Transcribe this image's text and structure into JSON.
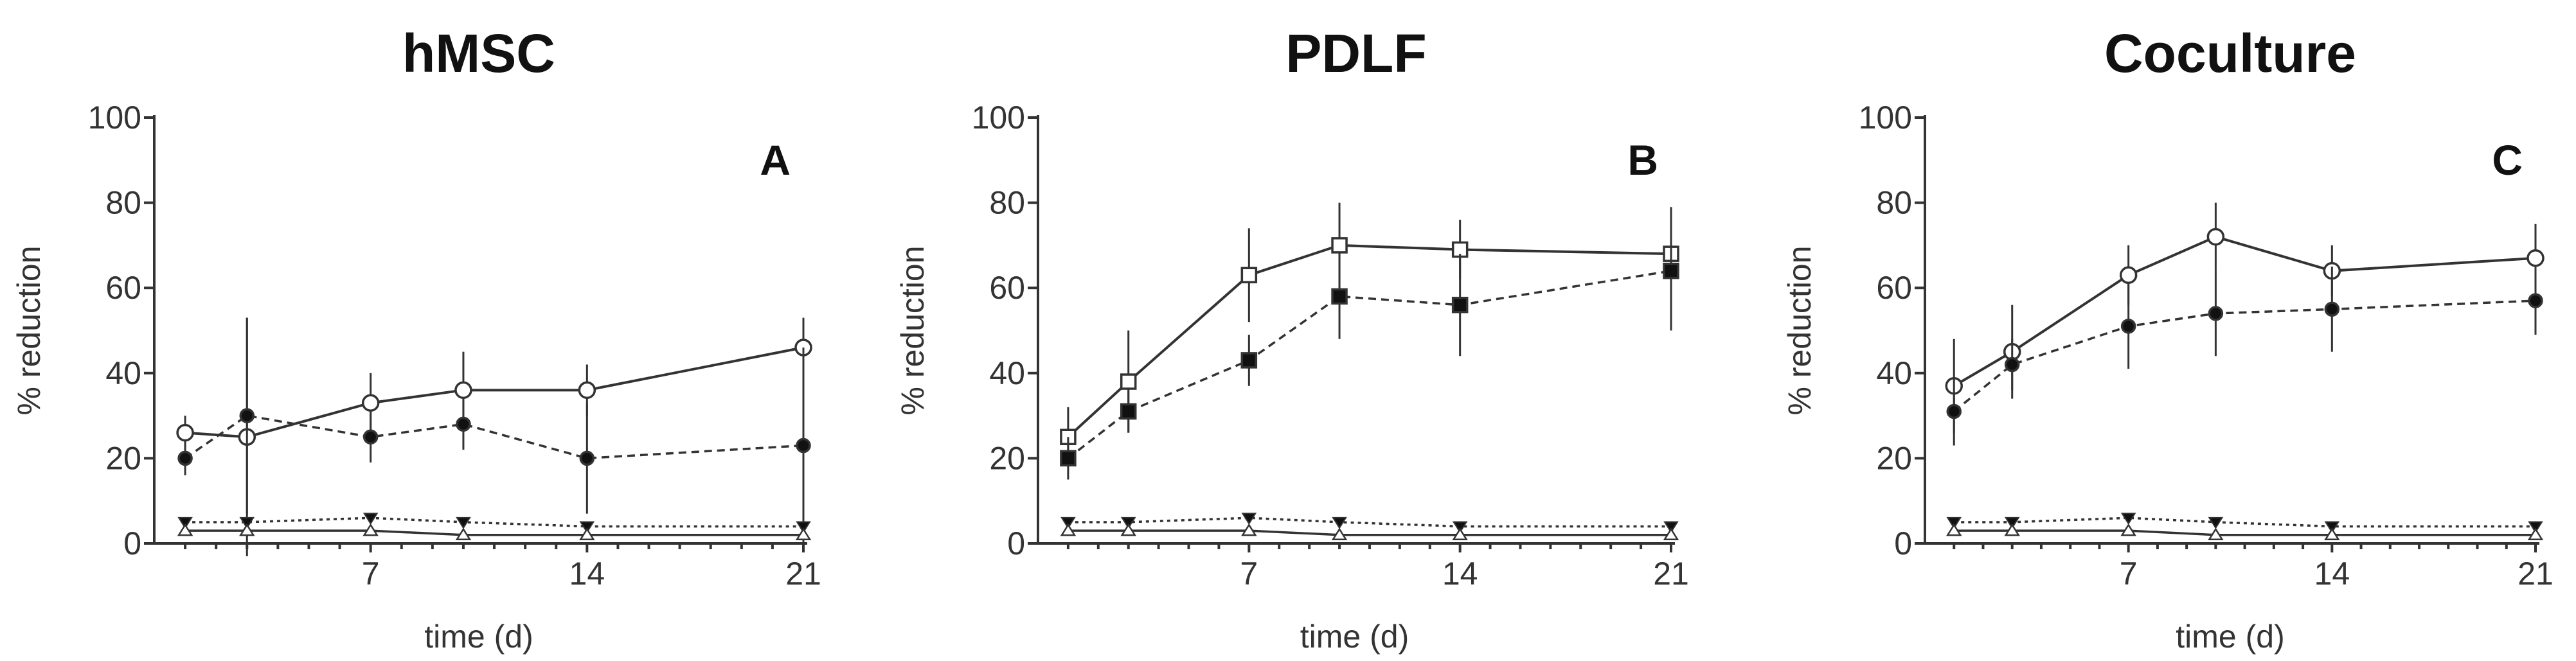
{
  "chart_data": [
    {
      "type": "line",
      "title": "hMSC",
      "panel_label": "A",
      "xlabel": "time (d)",
      "ylabel": "% reduction",
      "xlim": [
        0,
        21
      ],
      "ylim": [
        0,
        100
      ],
      "xticks": [
        7,
        14,
        21
      ],
      "yticks": [
        0,
        20,
        40,
        60,
        80,
        100
      ],
      "series": [
        {
          "name": "open circle, solid",
          "marker": "circle-open",
          "line": "solid",
          "x": [
            1,
            3,
            7,
            10,
            14,
            21
          ],
          "values": [
            26,
            25,
            33,
            36,
            36,
            46
          ],
          "err": [
            4,
            28,
            7,
            9,
            6,
            7
          ]
        },
        {
          "name": "filled circle, dashed",
          "marker": "circle-filled",
          "line": "dashed",
          "x": [
            1,
            3,
            7,
            10,
            14,
            21
          ],
          "values": [
            20,
            30,
            25,
            28,
            20,
            23
          ],
          "err": [
            4,
            23,
            6,
            6,
            13,
            23
          ]
        },
        {
          "name": "filled triangle, dotted",
          "marker": "triangle-filled",
          "line": "dotted",
          "x": [
            1,
            3,
            7,
            10,
            14,
            21
          ],
          "values": [
            5,
            5,
            6,
            5,
            4,
            4
          ],
          "err": [
            1,
            1,
            1,
            1,
            1,
            1
          ]
        },
        {
          "name": "open triangle, solid",
          "marker": "triangle-open",
          "line": "solid",
          "x": [
            1,
            3,
            7,
            10,
            14,
            21
          ],
          "values": [
            3,
            3,
            3,
            2,
            2,
            2
          ],
          "err": [
            1,
            1,
            1,
            1,
            1,
            1
          ]
        }
      ]
    },
    {
      "type": "line",
      "title": "PDLF",
      "panel_label": "B",
      "xlabel": "time (d)",
      "ylabel": "% reduction",
      "xlim": [
        0,
        21
      ],
      "ylim": [
        0,
        100
      ],
      "xticks": [
        7,
        14,
        21
      ],
      "yticks": [
        0,
        20,
        40,
        60,
        80,
        100
      ],
      "series": [
        {
          "name": "open square, solid",
          "marker": "square-open",
          "line": "solid",
          "x": [
            1,
            3,
            7,
            10,
            14,
            21
          ],
          "values": [
            25,
            38,
            63,
            70,
            69,
            68
          ],
          "err": [
            7,
            12,
            11,
            10,
            7,
            11
          ]
        },
        {
          "name": "filled square, dashed",
          "marker": "square-filled",
          "line": "dashed",
          "x": [
            1,
            3,
            7,
            10,
            14,
            21
          ],
          "values": [
            20,
            31,
            43,
            58,
            56,
            64
          ],
          "err": [
            5,
            5,
            6,
            10,
            12,
            14
          ]
        },
        {
          "name": "filled triangle, dotted",
          "marker": "triangle-filled",
          "line": "dotted",
          "x": [
            1,
            3,
            7,
            10,
            14,
            21
          ],
          "values": [
            5,
            5,
            6,
            5,
            4,
            4
          ],
          "err": [
            1,
            1,
            1,
            1,
            1,
            1
          ]
        },
        {
          "name": "open triangle, solid",
          "marker": "triangle-open",
          "line": "solid",
          "x": [
            1,
            3,
            7,
            10,
            14,
            21
          ],
          "values": [
            3,
            3,
            3,
            2,
            2,
            2
          ],
          "err": [
            1,
            1,
            1,
            1,
            1,
            1
          ]
        }
      ]
    },
    {
      "type": "line",
      "title": "Coculture",
      "panel_label": "C",
      "xlabel": "time (d)",
      "ylabel": "% reduction",
      "xlim": [
        0,
        21
      ],
      "ylim": [
        0,
        100
      ],
      "xticks": [
        7,
        14,
        21
      ],
      "yticks": [
        0,
        20,
        40,
        60,
        80,
        100
      ],
      "series": [
        {
          "name": "open circle, solid",
          "marker": "circle-open",
          "line": "solid",
          "x": [
            1,
            3,
            7,
            10,
            14,
            21
          ],
          "values": [
            37,
            45,
            63,
            72,
            64,
            67
          ],
          "err": [
            11,
            11,
            7,
            8,
            6,
            8
          ]
        },
        {
          "name": "filled circle, dashed",
          "marker": "circle-filled",
          "line": "dashed",
          "x": [
            1,
            3,
            7,
            10,
            14,
            21
          ],
          "values": [
            31,
            42,
            51,
            54,
            55,
            57
          ],
          "err": [
            8,
            6,
            10,
            10,
            10,
            8
          ]
        },
        {
          "name": "filled triangle, dotted",
          "marker": "triangle-filled",
          "line": "dotted",
          "x": [
            1,
            3,
            7,
            10,
            14,
            21
          ],
          "values": [
            5,
            5,
            6,
            5,
            4,
            4
          ],
          "err": [
            1,
            1,
            1,
            1,
            1,
            1
          ]
        },
        {
          "name": "open triangle, solid",
          "marker": "triangle-open",
          "line": "solid",
          "x": [
            1,
            3,
            7,
            10,
            14,
            21
          ],
          "values": [
            3,
            3,
            3,
            2,
            2,
            2
          ],
          "err": [
            1,
            1,
            1,
            1,
            1,
            1
          ]
        }
      ]
    }
  ],
  "colors": {
    "ink": "#333333",
    "title": "#111111",
    "background": "#ffffff"
  }
}
